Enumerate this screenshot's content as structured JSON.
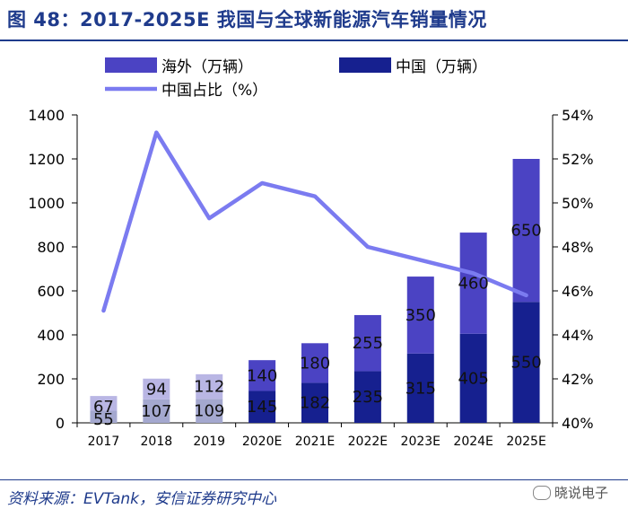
{
  "header": {
    "title": "图 48：2017-2025E 我国与全球新能源汽车销量情况"
  },
  "footer": {
    "source": "资料来源：EVTank，安信证券研究中心",
    "watermark": "晓说电子"
  },
  "colors": {
    "overseas": "#4b43c3",
    "china": "#16208f",
    "share_line": "#7b7bf0",
    "title": "#1f3b8c"
  },
  "chart_data": {
    "type": "bar",
    "stacked": true,
    "categories": [
      "2017",
      "2018",
      "2019",
      "2020E",
      "2021E",
      "2022E",
      "2023E",
      "2024E",
      "2025E"
    ],
    "series": [
      {
        "name": "中国（万辆）",
        "values": [
          55,
          107,
          109,
          145,
          182,
          235,
          315,
          405,
          550
        ]
      },
      {
        "name": "海外（万辆）",
        "values": [
          67,
          94,
          112,
          140,
          180,
          255,
          350,
          460,
          650
        ]
      }
    ],
    "line_series": {
      "name": "中国占比（%）",
      "axis": "right",
      "values": [
        45.1,
        53.2,
        49.3,
        50.9,
        50.3,
        48.0,
        47.4,
        46.8,
        45.8
      ]
    },
    "ylim": [
      0,
      1400
    ],
    "yticks": [
      0,
      200,
      400,
      600,
      800,
      1000,
      1200,
      1400
    ],
    "y2lim": [
      40,
      54
    ],
    "y2ticks": [
      "40%",
      "42%",
      "44%",
      "46%",
      "48%",
      "50%",
      "52%",
      "54%"
    ],
    "legend": [
      {
        "label": "海外（万辆）",
        "kind": "bar"
      },
      {
        "label": "中国（万辆）",
        "kind": "bar"
      },
      {
        "label": "中国占比（%）",
        "kind": "line"
      }
    ],
    "legend_position": "top",
    "xlabel": "",
    "ylabel": ""
  }
}
